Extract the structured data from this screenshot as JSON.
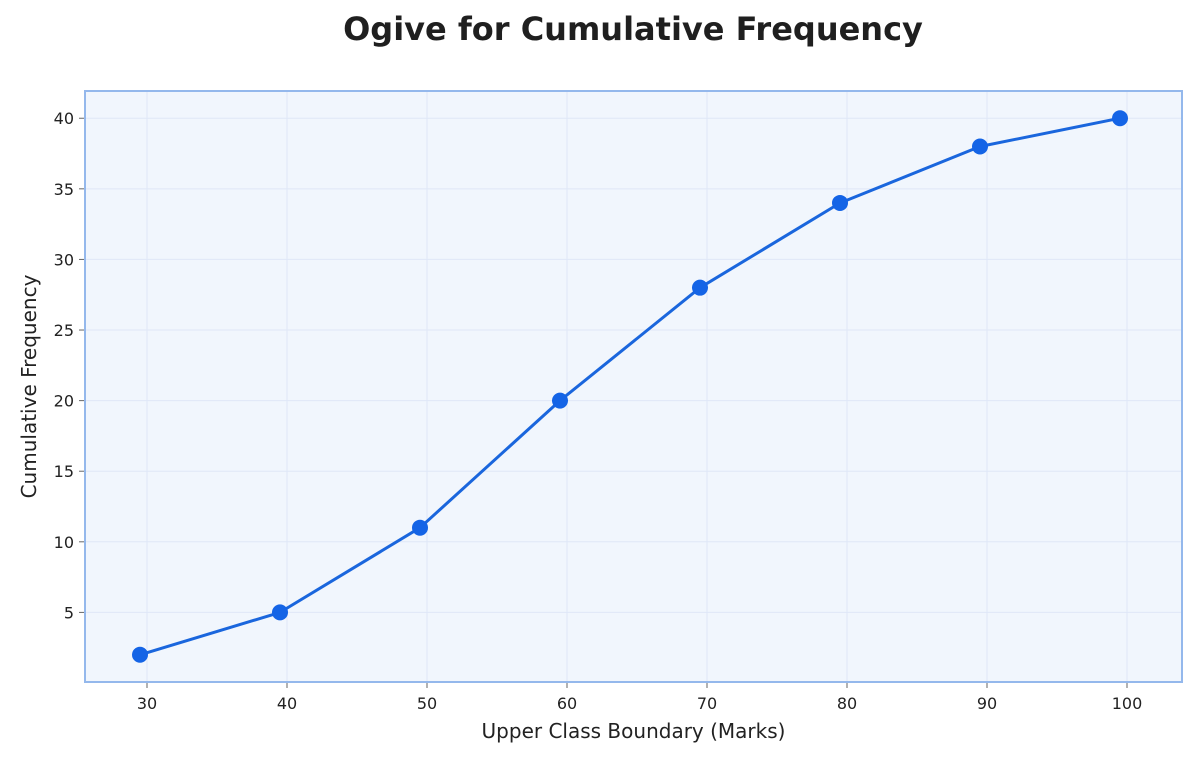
{
  "chart_data": {
    "type": "line",
    "title": "Ogive for Cumulative Frequency",
    "xlabel": "Upper Class Boundary (Marks)",
    "ylabel": "Cumulative Frequency",
    "x": [
      29.5,
      39.5,
      49.5,
      59.5,
      69.5,
      79.5,
      89.5,
      99.5
    ],
    "series": [
      {
        "values": [
          2,
          5,
          11,
          20,
          28,
          34,
          38,
          40
        ]
      }
    ],
    "xticks": [
      30,
      40,
      50,
      60,
      70,
      80,
      90,
      100
    ],
    "yticks": [
      5,
      10,
      15,
      20,
      25,
      30,
      35,
      40
    ],
    "xlim": [
      25.5,
      104
    ],
    "ylim": [
      0,
      42
    ],
    "grid": true,
    "legend": "none",
    "colors": {
      "line": "#1a66dd",
      "marker": "#1464e6",
      "plot_bg": "#f1f6fd",
      "frame": "#94b8ec",
      "grid": "#dfe7f7"
    }
  }
}
